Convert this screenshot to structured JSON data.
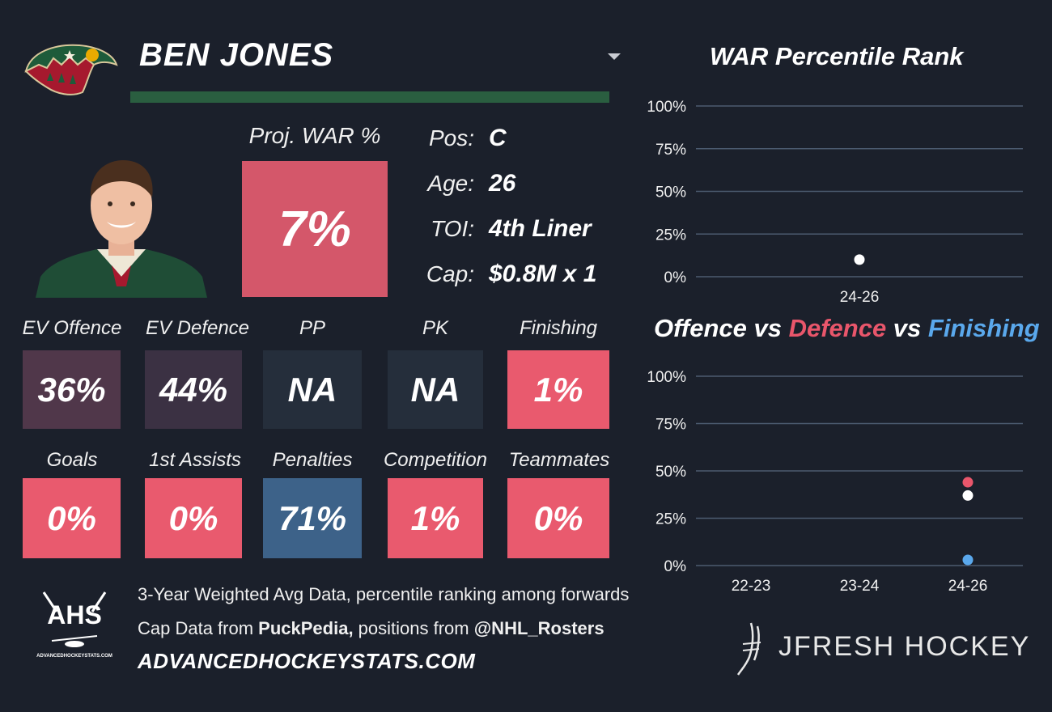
{
  "player": {
    "name": "BEN JONES",
    "proj_war_label": "Proj. WAR %",
    "proj_war_value": "7%",
    "proj_war_color": "#d4576a"
  },
  "info": [
    {
      "key": "Pos:",
      "value": "C"
    },
    {
      "key": "Age:",
      "value": "26"
    },
    {
      "key": "TOI:",
      "value": "4th Liner"
    },
    {
      "key": "Cap:",
      "value": "$0.8M x 1"
    }
  ],
  "name_bar": {
    "progress": 1.0,
    "color": "#2a5e40"
  },
  "tiles_row1": [
    {
      "label": "EV Offence",
      "value": "36%",
      "color": "#50374a"
    },
    {
      "label": "EV Defence",
      "value": "44%",
      "color": "#3b3143"
    },
    {
      "label": "PP",
      "value": "NA",
      "color": "#252e3b"
    },
    {
      "label": "PK",
      "value": "NA",
      "color": "#252e3b"
    },
    {
      "label": "Finishing",
      "value": "1%",
      "color": "#e95a6e"
    }
  ],
  "tiles_row2": [
    {
      "label": "Goals",
      "value": "0%",
      "color": "#e95a6e"
    },
    {
      "label": "1st Assists",
      "value": "0%",
      "color": "#e95a6e"
    },
    {
      "label": "Penalties",
      "value": "71%",
      "color": "#3d6289"
    },
    {
      "label": "Competition",
      "value": "1%",
      "color": "#e95a6e"
    },
    {
      "label": "Teammates",
      "value": "0%",
      "color": "#e95a6e"
    }
  ],
  "war_chart": {
    "title": "WAR Percentile Rank"
  },
  "ovd_chart": {
    "title_part1": "Offence",
    "title_vs1": " vs ",
    "title_part2": "Defence",
    "title_vs2": " vs ",
    "title_part3": "Finishing",
    "title_color_defence": "#e9566b",
    "title_color_finishing": "#5aa8ec"
  },
  "chart_data": [
    {
      "type": "scatter",
      "title": "WAR Percentile Rank",
      "categories": [
        "24-26"
      ],
      "series": [
        {
          "values": [
            10
          ],
          "color": "#ffffff"
        }
      ],
      "ylim": [
        0,
        100
      ],
      "yticks": [
        "0%",
        "25%",
        "50%",
        "75%",
        "100%"
      ],
      "grid": true
    },
    {
      "type": "scatter",
      "title": "Offence vs Defence vs Finishing",
      "categories": [
        "22-23",
        "23-24",
        "24-26"
      ],
      "series": [
        {
          "name": "Offence",
          "values": [
            null,
            null,
            37
          ],
          "color": "#ffffff"
        },
        {
          "name": "Defence",
          "values": [
            null,
            null,
            44
          ],
          "color": "#e9566b"
        },
        {
          "name": "Finishing",
          "values": [
            null,
            null,
            3
          ],
          "color": "#5aa8ec"
        }
      ],
      "ylim": [
        0,
        100
      ],
      "yticks": [
        "0%",
        "25%",
        "50%",
        "75%",
        "100%"
      ],
      "grid": true
    }
  ],
  "footer": {
    "line1": "3-Year Weighted Avg Data, percentile ranking among forwards",
    "line2_pre": "Cap Data from ",
    "line2_bold1": "PuckPedia,",
    "line2_mid": " positions from ",
    "line2_bold2": "@NHL_Rosters",
    "url": "ADVANCEDHOCKEYSTATS.COM",
    "ahs_logo_text": "AHS",
    "ahs_logo_sub": "ADVANCEDHOCKEYSTATS.COM",
    "brand": "JFRESH HOCKEY"
  },
  "icons": {
    "team_logo": "wild-logo-icon",
    "dropdown": "chevron-down-icon",
    "ahs_logo": "ahs-logo-icon",
    "brand_logo": "jfresh-logo-icon"
  }
}
